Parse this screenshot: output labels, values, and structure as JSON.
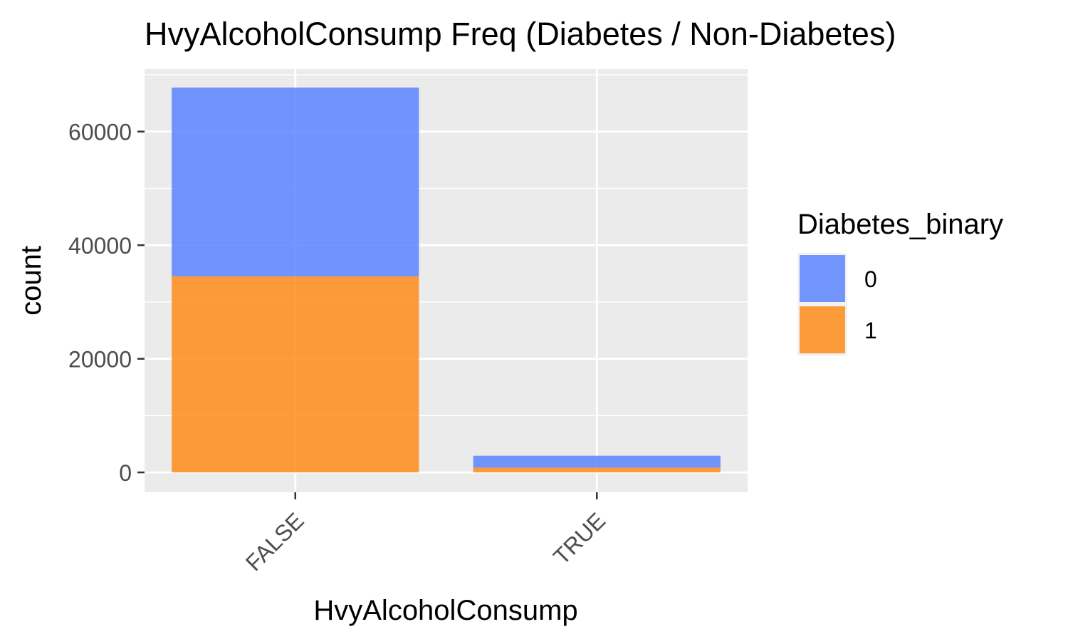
{
  "chart_data": {
    "type": "bar",
    "stacked": true,
    "title": "HvyAlcoholConsump Freq (Diabetes / Non-Diabetes)",
    "xlabel": "HvyAlcoholConsump",
    "ylabel": "count",
    "categories": [
      "FALSE",
      "TRUE"
    ],
    "series": [
      {
        "name": "1",
        "values": [
          34514,
          832
        ],
        "color": "#FF8C1A"
      },
      {
        "name": "0",
        "values": [
          33244,
          2102
        ],
        "color": "#5C85FF"
      }
    ],
    "ylim": [
      -3500,
      71000
    ],
    "yticks": [
      0,
      20000,
      40000,
      60000
    ],
    "ytick_labels": [
      "0",
      "20000",
      "40000",
      "60000"
    ],
    "grid": true,
    "legend": {
      "title": "Diabetes_binary",
      "position": "right",
      "entries": [
        {
          "label": "0",
          "color": "#5C85FF"
        },
        {
          "label": "1",
          "color": "#FF8C1A"
        }
      ]
    },
    "panel_background": "#EBEBEB"
  }
}
